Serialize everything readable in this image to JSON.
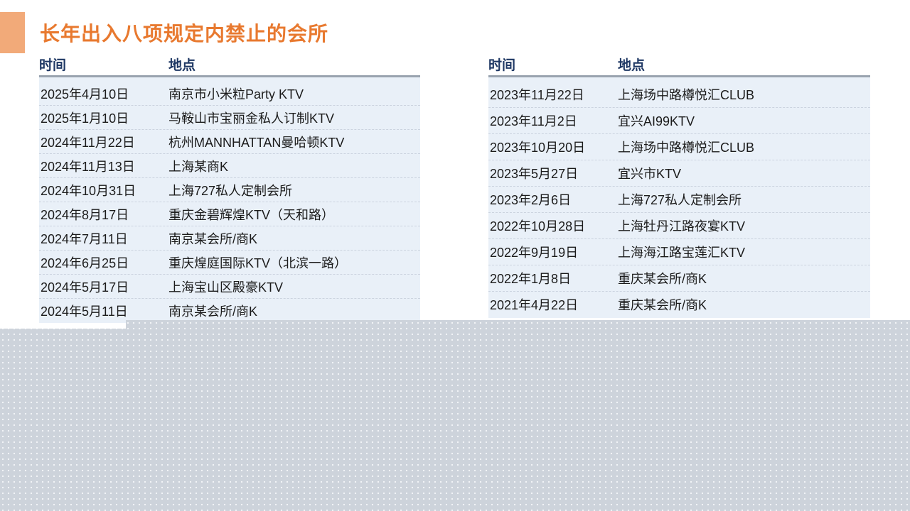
{
  "slide": {
    "title": "长年出入八项规定内禁止的会所"
  },
  "colors": {
    "title_accent": "#E8792F",
    "title_marker": "#F2AA79",
    "header_text": "#1F3864",
    "header_underline": "#99A3AF",
    "row_background": "#E9F0F8",
    "body_text": "#1B1B1B",
    "bottom_overlay": "#CDD3DB"
  },
  "tables": [
    {
      "id": "left",
      "headers": {
        "time": "时间",
        "location": "地点"
      },
      "rows": [
        {
          "date": "2025年4月10日",
          "location": "南京市小米粒Party KTV"
        },
        {
          "date": "2025年1月10日",
          "location": "马鞍山市宝丽金私人订制KTV"
        },
        {
          "date": "2024年11月22日",
          "location": "杭州MANNHATTAN曼哈顿KTV"
        },
        {
          "date": "2024年11月13日",
          "location": "上海某商K"
        },
        {
          "date": "2024年10月31日",
          "location": "上海727私人定制会所"
        },
        {
          "date": "2024年8月17日",
          "location": "重庆金碧辉煌KTV（天和路）"
        },
        {
          "date": "2024年7月11日",
          "location": "南京某会所/商K"
        },
        {
          "date": "2024年6月25日",
          "location": "重庆煌庭国际KTV（北滨一路）"
        },
        {
          "date": "2024年5月17日",
          "location": "上海宝山区殿豪KTV"
        },
        {
          "date": "2024年5月11日",
          "location": "南京某会所/商K"
        }
      ]
    },
    {
      "id": "right",
      "headers": {
        "time": "时间",
        "location": "地点"
      },
      "rows": [
        {
          "date": "2023年11月22日",
          "location": "上海场中路樽悦汇CLUB"
        },
        {
          "date": "2023年11月2日",
          "location": "宜兴AI99KTV"
        },
        {
          "date": "2023年10月20日",
          "location": "上海场中路樽悦汇CLUB"
        },
        {
          "date": "2023年5月27日",
          "location": "宜兴市KTV"
        },
        {
          "date": "2023年2月6日",
          "location": "上海727私人定制会所"
        },
        {
          "date": "2022年10月28日",
          "location": "上海牡丹江路夜宴KTV"
        },
        {
          "date": "2022年9月19日",
          "location": "上海海江路宝莲汇KTV"
        },
        {
          "date": "2022年1月8日",
          "location": "重庆某会所/商K"
        },
        {
          "date": "2021年4月22日",
          "location": "重庆某会所/商K"
        }
      ]
    }
  ]
}
